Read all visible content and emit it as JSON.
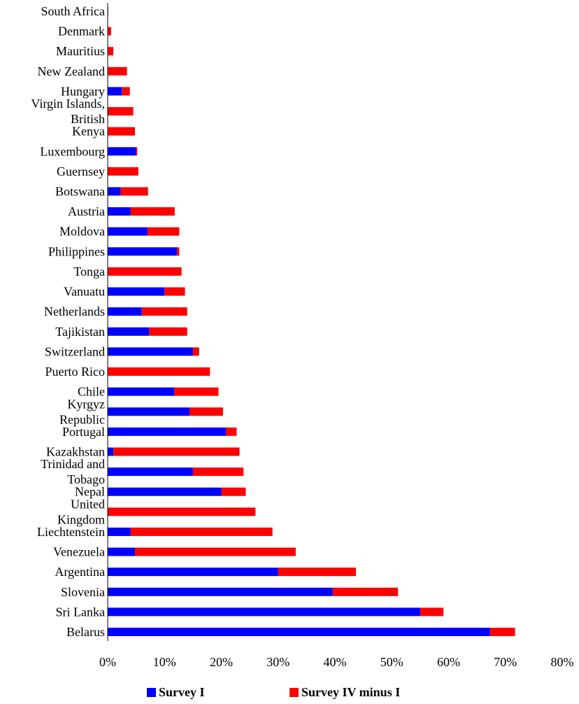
{
  "chart_data": {
    "type": "bar",
    "orientation": "horizontal",
    "stacked": true,
    "categories": [
      "South Africa",
      "Denmark",
      "Mauritius",
      "New Zealand",
      "Hungary",
      "Virgin Islands, British",
      "Kenya",
      "Luxembourg",
      "Guernsey",
      "Botswana",
      "Austria",
      "Moldova",
      "Philippines",
      "Tonga",
      "Vanuatu",
      "Netherlands",
      "Tajikistan",
      "Switzerland",
      "Puerto Rico",
      "Chile",
      "Kyrgyz Republic",
      "Portugal",
      "Kazakhstan",
      "Trinidad and Tobago",
      "Nepal",
      "United Kingdom",
      "Liechtenstein",
      "Venezuela",
      "Argentina",
      "Slovenia",
      "Sri Lanka",
      "Belarus"
    ],
    "category_label_lines": [
      [
        "South Africa"
      ],
      [
        "Denmark"
      ],
      [
        "Mauritius"
      ],
      [
        "New Zealand"
      ],
      [
        "Hungary"
      ],
      [
        "Virgin Islands,",
        "British"
      ],
      [
        "Kenya"
      ],
      [
        "Luxembourg"
      ],
      [
        "Guernsey"
      ],
      [
        "Botswana"
      ],
      [
        "Austria"
      ],
      [
        "Moldova"
      ],
      [
        "Philippines"
      ],
      [
        "Tonga"
      ],
      [
        "Vanuatu"
      ],
      [
        "Netherlands"
      ],
      [
        "Tajikistan"
      ],
      [
        "Switzerland"
      ],
      [
        "Puerto Rico"
      ],
      [
        "Chile"
      ],
      [
        "Kyrgyz",
        "Republic"
      ],
      [
        "Portugal"
      ],
      [
        "Kazakhstan"
      ],
      [
        "Trinidad and",
        "Tobago"
      ],
      [
        "Nepal"
      ],
      [
        "United",
        "Kingdom"
      ],
      [
        "Liechtenstein"
      ],
      [
        "Venezuela"
      ],
      [
        "Argentina"
      ],
      [
        "Slovenia"
      ],
      [
        "Sri Lanka"
      ],
      [
        "Belarus"
      ]
    ],
    "series": [
      {
        "name": "Survey I",
        "color": "#0000ff",
        "values": [
          0.0,
          0.0,
          0.0,
          0.0,
          2.5,
          0.0,
          0.0,
          5.0,
          0.0,
          2.3,
          4.0,
          7.0,
          12.2,
          0.0,
          10.0,
          6.0,
          7.3,
          15.0,
          0.0,
          11.7,
          14.4,
          20.8,
          1.0,
          15.0,
          20.0,
          0.0,
          4.0,
          4.8,
          30.0,
          39.6,
          55.0,
          67.3
        ]
      },
      {
        "name": "Survey IV minus I",
        "color": "#ff0000",
        "values": [
          0.1,
          0.6,
          1.0,
          3.4,
          1.4,
          4.5,
          4.8,
          0.2,
          5.4,
          4.8,
          7.8,
          5.6,
          0.4,
          13.0,
          3.6,
          8.0,
          6.7,
          1.1,
          18.0,
          7.8,
          5.9,
          1.9,
          22.2,
          8.9,
          4.3,
          26.0,
          25.0,
          28.3,
          13.7,
          11.5,
          4.1,
          4.4
        ]
      }
    ],
    "xlim": [
      0,
      80
    ],
    "x_ticks": [
      0,
      10,
      20,
      30,
      40,
      50,
      60,
      70,
      80
    ],
    "x_tick_suffix": "%",
    "grid": false,
    "legend_position": "bottom",
    "title": "",
    "xlabel": "",
    "ylabel": ""
  }
}
